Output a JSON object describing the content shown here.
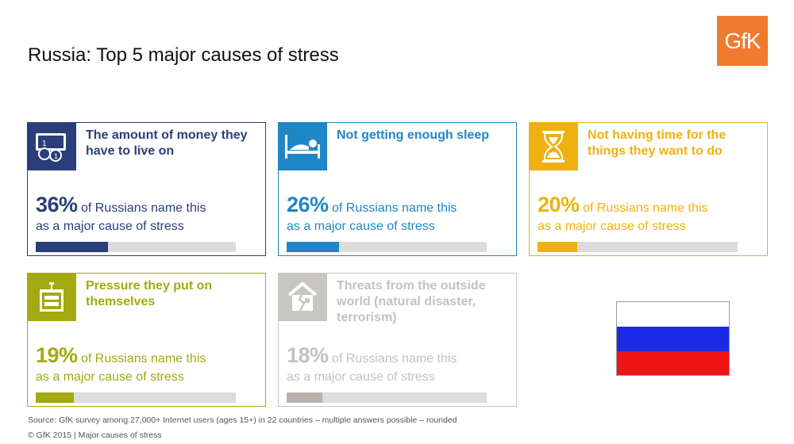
{
  "title": "Russia: Top 5 major causes of stress",
  "logo": {
    "text": "GfK",
    "color": "#ef7a30"
  },
  "cards": [
    {
      "title": "The amount of money they have to live on",
      "percent": "36%",
      "share": 0.36,
      "line1": " of Russians name this",
      "line2": "as a major cause of stress",
      "icon": "money-icon",
      "color": "#2a3f7a"
    },
    {
      "title": "Not getting enough sleep",
      "percent": "26%",
      "share": 0.26,
      "line1": " of Russians name this",
      "line2": "as a major cause of stress",
      "icon": "bed-icon",
      "color": "#1f87c5"
    },
    {
      "title": "Not having time for the things they want to do",
      "percent": "20%",
      "share": 0.2,
      "line1": " of Russians name this",
      "line2": "as a major cause of stress",
      "icon": "hourglass-icon",
      "color": "#efb10f"
    },
    {
      "title": "Pressure they put on themselves",
      "percent": "19%",
      "share": 0.19,
      "line1": " of Russians name this",
      "line2": "as a major cause of stress",
      "icon": "pressure-icon",
      "color": "#a3aa10"
    },
    {
      "title": "Threats from the outside world (natural disaster, terrorism)",
      "percent": "18%",
      "share": 0.18,
      "line1": " of Russians name this",
      "line2": "as a major cause of stress",
      "icon": "broken-house-icon",
      "color": "#c8c6c3"
    }
  ],
  "flag": {
    "icon": "russia-flag-icon",
    "colors": [
      "#ffffff",
      "#1a2ae6",
      "#f01414"
    ]
  },
  "source": "Source: GfK survey among 27,000+ Internet users (ages 15+) in 22 countries – multiple answers possible – rounded",
  "copyright": "© GfK 2015 | Major causes of stress"
}
